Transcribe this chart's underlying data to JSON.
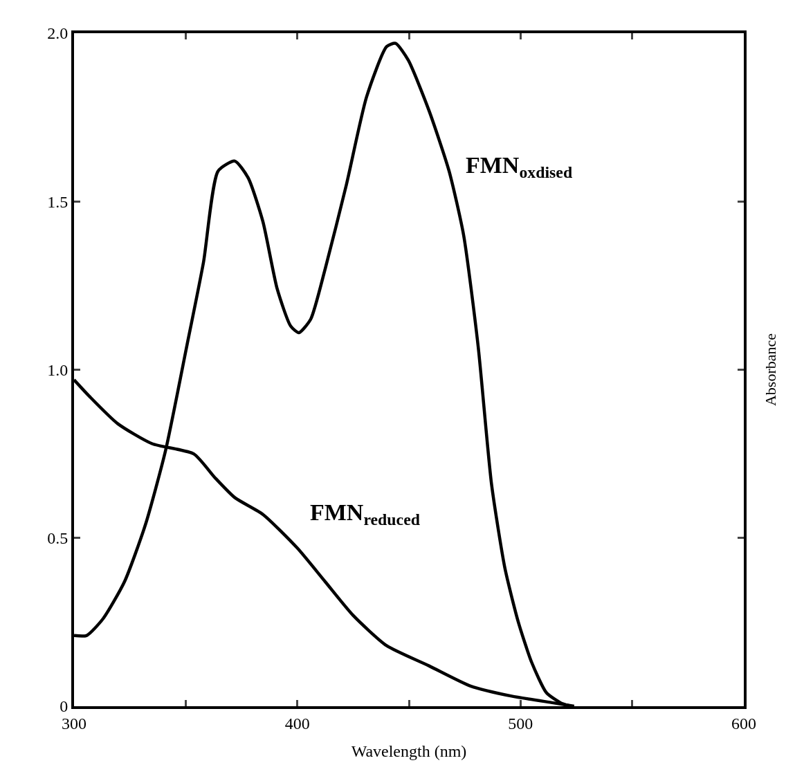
{
  "chart_data": {
    "type": "line",
    "xlabel": "Wavelength (nm)",
    "ylabel": "Absorbance",
    "xlim": [
      300,
      600
    ],
    "xticks": [
      300,
      {
        "value": 350,
        "label": null
      },
      400,
      {
        "value": 450,
        "label": null
      },
      500,
      {
        "value": 550,
        "label": null
      },
      600
    ],
    "ylim": [
      0,
      2.0
    ],
    "yticks": [
      0,
      {
        "value": 0.5,
        "label": "0.5"
      },
      {
        "value": 1,
        "label": "1.0"
      },
      1.5,
      {
        "value": 2,
        "label": "2.0"
      }
    ],
    "grid": false,
    "legend": false,
    "marker": "none",
    "line_style": "solid",
    "series": [
      {
        "name": "FMN$_{oxdised}$",
        "color": "#000000",
        "x": [
          300,
          305.6,
          313,
          322.6,
          332,
          341,
          350.5,
          358,
          364.5,
          372,
          378,
          384.6,
          391,
          397,
          400.7,
          406,
          412.5,
          422,
          431,
          440,
          444,
          449.7,
          459,
          468,
          474.5,
          481,
          487,
          493,
          499,
          505,
          511.6,
          518,
          522.5
        ],
        "values": [
          0.21,
          0.21,
          0.26,
          0.37,
          0.54,
          0.76,
          1.07,
          1.32,
          1.59,
          1.62,
          1.57,
          1.44,
          1.24,
          1.13,
          1.11,
          1.15,
          1.3,
          1.55,
          1.81,
          1.96,
          1.97,
          1.92,
          1.77,
          1.59,
          1.4,
          1.07,
          0.66,
          0.41,
          0.25,
          0.13,
          0.04,
          0.01,
          0
        ]
      },
      {
        "name": "FMN$_{reduced}$",
        "color": "#000000",
        "x": [
          300,
          307,
          319.5,
          335,
          353.6,
          363,
          372,
          384.6,
          400,
          412.5,
          425,
          440,
          459,
          477.6,
          496,
          514.7,
          524
        ],
        "values": [
          0.97,
          0.92,
          0.84,
          0.78,
          0.75,
          0.68,
          0.62,
          0.57,
          0.47,
          0.37,
          0.27,
          0.18,
          0.12,
          0.06,
          0.03,
          0.01,
          0
        ]
      }
    ]
  }
}
